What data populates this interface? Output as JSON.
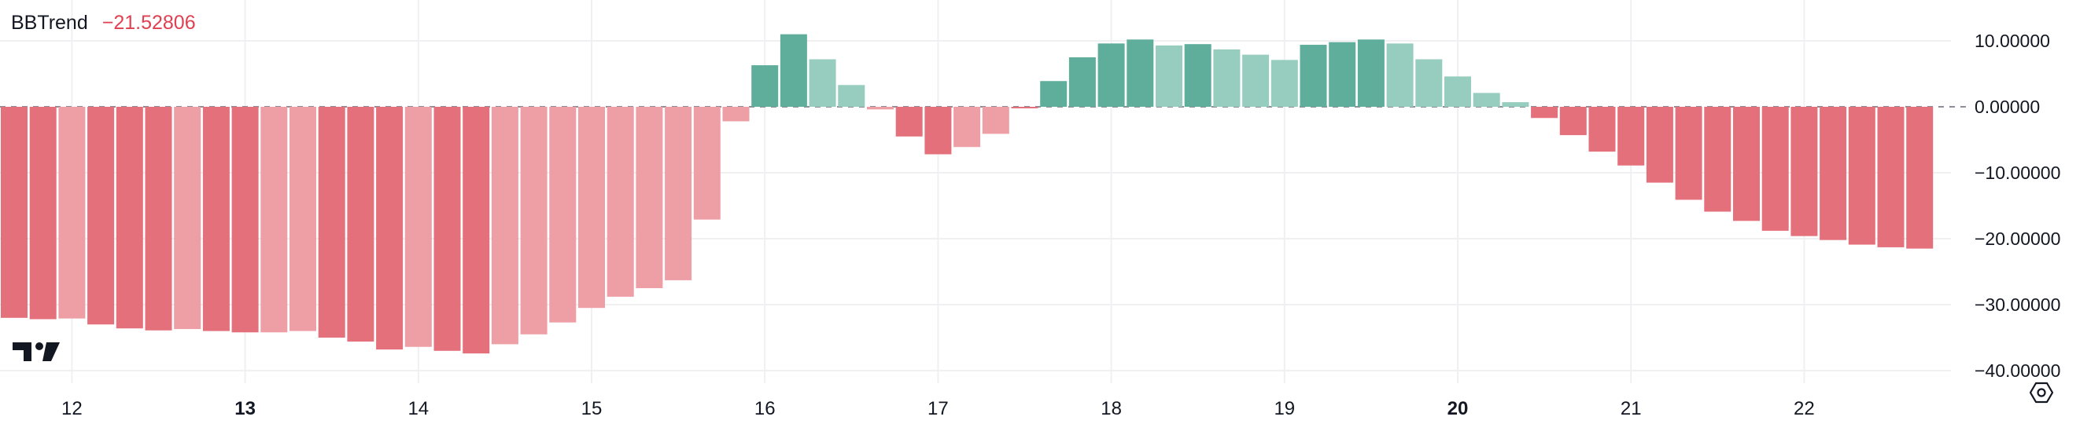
{
  "legend": {
    "name": "BBTrend",
    "value": "−21.52806"
  },
  "colors": {
    "strong_up": "#5fae9c",
    "weak_up": "#96cdbf",
    "strong_down": "#e4707b",
    "weak_down": "#ee9ea5",
    "axis_text": "#131722",
    "legend_value": "#e0404f",
    "grid": "#f0f0f3",
    "zero_line": "#8a8e99"
  },
  "icons": {
    "logo": "tradingview-logo-icon",
    "settings": "settings-hexagon-icon"
  },
  "chart_data": {
    "type": "bar",
    "title": "BBTrend",
    "x_ticks": [
      {
        "label": "12",
        "bold": false
      },
      {
        "label": "13",
        "bold": true
      },
      {
        "label": "14",
        "bold": false
      },
      {
        "label": "15",
        "bold": false
      },
      {
        "label": "16",
        "bold": false
      },
      {
        "label": "17",
        "bold": false
      },
      {
        "label": "18",
        "bold": false
      },
      {
        "label": "19",
        "bold": false
      },
      {
        "label": "20",
        "bold": true
      },
      {
        "label": "21",
        "bold": false
      },
      {
        "label": "22",
        "bold": false
      }
    ],
    "y_ticks": [
      "10.00000",
      "0.00000",
      "−10.00000",
      "−20.00000",
      "−30.00000",
      "−40.00000"
    ],
    "y_tick_values": [
      10,
      0,
      -10,
      -20,
      -30,
      -40
    ],
    "ylim": [
      -41.5,
      16.5
    ],
    "bars_per_x_tick": 6,
    "values": [
      -32.0,
      -32.2,
      -32.1,
      -33.0,
      -33.6,
      -33.9,
      -33.7,
      -34.0,
      -34.2,
      -34.2,
      -34.0,
      -35.0,
      -35.6,
      -36.8,
      -36.4,
      -37.0,
      -37.4,
      -36.0,
      -34.5,
      -32.7,
      -30.5,
      -28.8,
      -27.5,
      -26.3,
      -17.1,
      -2.2,
      6.3,
      11.0,
      7.2,
      3.3,
      -0.4,
      -4.5,
      -7.2,
      -6.1,
      -4.1,
      -0.2,
      3.9,
      7.5,
      9.6,
      10.2,
      9.3,
      9.5,
      8.7,
      7.9,
      7.1,
      9.4,
      9.8,
      10.2,
      9.6,
      7.2,
      4.6,
      2.1,
      0.7,
      -1.7,
      -4.3,
      -6.8,
      -8.9,
      -11.5,
      -14.1,
      -15.9,
      -17.3,
      -18.8,
      -19.6,
      -20.2,
      -20.9,
      -21.3,
      -21.5
    ],
    "colors": [
      "strong_down",
      "strong_down",
      "weak_down",
      "strong_down",
      "strong_down",
      "strong_down",
      "weak_down",
      "strong_down",
      "strong_down",
      "weak_down",
      "weak_down",
      "strong_down",
      "strong_down",
      "strong_down",
      "weak_down",
      "strong_down",
      "strong_down",
      "weak_down",
      "weak_down",
      "weak_down",
      "weak_down",
      "weak_down",
      "weak_down",
      "weak_down",
      "weak_down",
      "weak_down",
      "strong_up",
      "strong_up",
      "weak_up",
      "weak_up",
      "weak_down",
      "strong_down",
      "strong_down",
      "weak_down",
      "weak_down",
      "strong_down",
      "strong_up",
      "strong_up",
      "strong_up",
      "strong_up",
      "weak_up",
      "strong_up",
      "weak_up",
      "weak_up",
      "weak_up",
      "strong_up",
      "strong_up",
      "strong_up",
      "weak_up",
      "weak_up",
      "weak_up",
      "weak_up",
      "weak_up",
      "strong_down",
      "strong_down",
      "strong_down",
      "strong_down",
      "strong_down",
      "strong_down",
      "strong_down",
      "strong_down",
      "strong_down",
      "strong_down",
      "strong_down",
      "strong_down",
      "strong_down",
      "strong_down"
    ],
    "grid": true,
    "zero_line": "dashed"
  }
}
